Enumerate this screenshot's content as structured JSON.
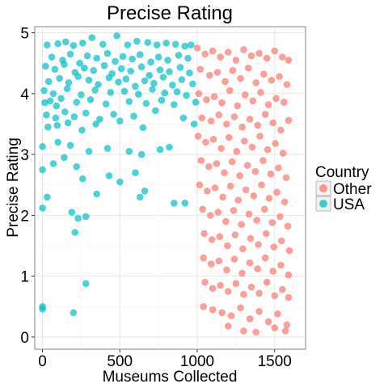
{
  "chart_data": {
    "type": "scatter",
    "title": "Precise Rating",
    "xlabel": "Museums Collected",
    "ylabel": "Precise Rating",
    "xlim": [
      -50,
      1700
    ],
    "ylim": [
      -0.2,
      5.1
    ],
    "x_ticks": [
      0,
      500,
      1000,
      1500
    ],
    "y_ticks": [
      0,
      1,
      2,
      3,
      4,
      5
    ],
    "grid": true,
    "legend": {
      "title": "Country",
      "position": "right",
      "entries": [
        {
          "label": "Other",
          "color": "#F8766D"
        },
        {
          "label": "USA",
          "color": "#00BFC4"
        }
      ]
    },
    "series": [
      {
        "name": "USA",
        "color": "#00BFC4",
        "points": [
          [
            320,
            4.92
          ],
          [
            480,
            4.95
          ],
          [
            30,
            4.8
          ],
          [
            100,
            4.82
          ],
          [
            150,
            4.85
          ],
          [
            200,
            4.79
          ],
          [
            260,
            4.83
          ],
          [
            390,
            4.81
          ],
          [
            550,
            4.8
          ],
          [
            610,
            4.86
          ],
          [
            680,
            4.84
          ],
          [
            740,
            4.8
          ],
          [
            800,
            4.83
          ],
          [
            860,
            4.81
          ],
          [
            920,
            4.78
          ],
          [
            960,
            4.8
          ],
          [
            60,
            4.6
          ],
          [
            130,
            4.55
          ],
          [
            180,
            4.65
          ],
          [
            240,
            4.5
          ],
          [
            290,
            4.62
          ],
          [
            350,
            4.58
          ],
          [
            420,
            4.66
          ],
          [
            470,
            4.53
          ],
          [
            520,
            4.61
          ],
          [
            580,
            4.57
          ],
          [
            630,
            4.64
          ],
          [
            700,
            4.52
          ],
          [
            750,
            4.6
          ],
          [
            810,
            4.55
          ],
          [
            880,
            4.63
          ],
          [
            940,
            4.58
          ],
          [
            20,
            4.45
          ],
          [
            80,
            4.4
          ],
          [
            140,
            4.48
          ],
          [
            210,
            4.35
          ],
          [
            270,
            4.42
          ],
          [
            330,
            4.38
          ],
          [
            400,
            4.46
          ],
          [
            450,
            4.33
          ],
          [
            510,
            4.41
          ],
          [
            570,
            4.37
          ],
          [
            640,
            4.44
          ],
          [
            690,
            4.3
          ],
          [
            760,
            4.39
          ],
          [
            820,
            4.36
          ],
          [
            890,
            4.43
          ],
          [
            950,
            4.34
          ],
          [
            40,
            4.2
          ],
          [
            110,
            4.25
          ],
          [
            170,
            4.18
          ],
          [
            230,
            4.28
          ],
          [
            300,
            4.22
          ],
          [
            360,
            4.15
          ],
          [
            430,
            4.26
          ],
          [
            490,
            4.19
          ],
          [
            540,
            4.24
          ],
          [
            600,
            4.12
          ],
          [
            660,
            4.21
          ],
          [
            720,
            4.17
          ],
          [
            780,
            4.27
          ],
          [
            840,
            4.14
          ],
          [
            900,
            4.23
          ],
          [
            970,
            4.16
          ],
          [
            10,
            4.05
          ],
          [
            70,
            4.0
          ],
          [
            160,
            4.08
          ],
          [
            250,
            3.98
          ],
          [
            340,
            4.06
          ],
          [
            440,
            4.02
          ],
          [
            530,
            4.04
          ],
          [
            620,
            3.99
          ],
          [
            710,
            4.07
          ],
          [
            790,
            4.01
          ],
          [
            870,
            4.03
          ],
          [
            930,
            3.97
          ],
          [
            15,
            3.85
          ],
          [
            50,
            3.88
          ],
          [
            90,
            3.8
          ],
          [
            120,
            3.92
          ],
          [
            220,
            3.86
          ],
          [
            310,
            3.9
          ],
          [
            410,
            3.83
          ],
          [
            560,
            3.87
          ],
          [
            670,
            3.84
          ],
          [
            770,
            3.89
          ],
          [
            850,
            3.82
          ],
          [
            990,
            3.86
          ],
          [
            25,
            3.65
          ],
          [
            85,
            3.6
          ],
          [
            145,
            3.7
          ],
          [
            205,
            3.62
          ],
          [
            280,
            3.68
          ],
          [
            370,
            3.58
          ],
          [
            460,
            3.66
          ],
          [
            590,
            3.63
          ],
          [
            730,
            3.72
          ],
          [
            910,
            3.6
          ],
          [
            35,
            3.45
          ],
          [
            95,
            3.48
          ],
          [
            165,
            3.52
          ],
          [
            255,
            3.4
          ],
          [
            345,
            3.5
          ],
          [
            500,
            3.55
          ],
          [
            650,
            3.44
          ],
          [
            980,
            3.5
          ],
          [
            0,
            3.13
          ],
          [
            100,
            3.2
          ],
          [
            180,
            3.15
          ],
          [
            300,
            3.05
          ],
          [
            420,
            3.1
          ],
          [
            560,
            3.05
          ],
          [
            640,
            3.0
          ],
          [
            760,
            3.08
          ],
          [
            820,
            3.12
          ],
          [
            0,
            2.75
          ],
          [
            30,
            2.3
          ],
          [
            70,
            2.85
          ],
          [
            140,
            2.95
          ],
          [
            220,
            2.8
          ],
          [
            260,
            2.6
          ],
          [
            350,
            2.35
          ],
          [
            430,
            2.65
          ],
          [
            500,
            2.55
          ],
          [
            600,
            2.7
          ],
          [
            660,
            2.4
          ],
          [
            630,
            2.3
          ],
          [
            850,
            2.2
          ],
          [
            920,
            2.2
          ],
          [
            0,
            2.12
          ],
          [
            190,
            2.05
          ],
          [
            230,
            1.95
          ],
          [
            280,
            1.98
          ],
          [
            210,
            1.72
          ],
          [
            280,
            0.88
          ],
          [
            200,
            0.4
          ],
          [
            0,
            0.5
          ],
          [
            0,
            0.46
          ]
        ]
      },
      {
        "name": "Other",
        "color": "#F8766D",
        "points": [
          [
            1000,
            4.75
          ],
          [
            1050,
            4.65
          ],
          [
            1100,
            4.7
          ],
          [
            1150,
            4.6
          ],
          [
            1200,
            4.68
          ],
          [
            1250,
            4.55
          ],
          [
            1300,
            4.72
          ],
          [
            1350,
            4.62
          ],
          [
            1400,
            4.66
          ],
          [
            1450,
            4.58
          ],
          [
            1500,
            4.7
          ],
          [
            1550,
            4.6
          ],
          [
            1590,
            4.55
          ],
          [
            1020,
            4.4
          ],
          [
            1080,
            4.3
          ],
          [
            1130,
            4.35
          ],
          [
            1180,
            4.2
          ],
          [
            1230,
            4.38
          ],
          [
            1280,
            4.25
          ],
          [
            1330,
            4.42
          ],
          [
            1380,
            4.18
          ],
          [
            1430,
            4.32
          ],
          [
            1480,
            4.22
          ],
          [
            1530,
            4.28
          ],
          [
            1580,
            4.15
          ],
          [
            1010,
            4.0
          ],
          [
            1060,
            3.9
          ],
          [
            1110,
            3.95
          ],
          [
            1160,
            3.85
          ],
          [
            1210,
            4.05
          ],
          [
            1260,
            3.8
          ],
          [
            1310,
            3.98
          ],
          [
            1360,
            3.88
          ],
          [
            1410,
            4.02
          ],
          [
            1460,
            3.82
          ],
          [
            1510,
            3.92
          ],
          [
            1560,
            3.86
          ],
          [
            1030,
            3.6
          ],
          [
            1090,
            3.55
          ],
          [
            1140,
            3.65
          ],
          [
            1190,
            3.5
          ],
          [
            1240,
            3.62
          ],
          [
            1290,
            3.45
          ],
          [
            1340,
            3.58
          ],
          [
            1390,
            3.48
          ],
          [
            1440,
            3.66
          ],
          [
            1490,
            3.52
          ],
          [
            1540,
            3.4
          ],
          [
            1590,
            3.56
          ],
          [
            1005,
            3.3
          ],
          [
            1055,
            3.2
          ],
          [
            1105,
            3.25
          ],
          [
            1155,
            3.1
          ],
          [
            1205,
            3.28
          ],
          [
            1255,
            3.05
          ],
          [
            1305,
            3.22
          ],
          [
            1355,
            3.12
          ],
          [
            1405,
            3.3
          ],
          [
            1455,
            3.08
          ],
          [
            1505,
            3.18
          ],
          [
            1555,
            3.02
          ],
          [
            1025,
            2.9
          ],
          [
            1075,
            2.8
          ],
          [
            1125,
            2.85
          ],
          [
            1175,
            2.7
          ],
          [
            1225,
            2.88
          ],
          [
            1275,
            2.65
          ],
          [
            1325,
            2.82
          ],
          [
            1375,
            2.72
          ],
          [
            1425,
            2.9
          ],
          [
            1475,
            2.68
          ],
          [
            1525,
            2.78
          ],
          [
            1575,
            2.62
          ],
          [
            1015,
            2.5
          ],
          [
            1065,
            2.4
          ],
          [
            1115,
            2.45
          ],
          [
            1165,
            2.3
          ],
          [
            1215,
            2.48
          ],
          [
            1265,
            2.25
          ],
          [
            1315,
            2.42
          ],
          [
            1365,
            2.32
          ],
          [
            1415,
            2.5
          ],
          [
            1465,
            2.28
          ],
          [
            1515,
            2.38
          ],
          [
            1565,
            2.22
          ],
          [
            1035,
            2.1
          ],
          [
            1085,
            2.0
          ],
          [
            1135,
            2.05
          ],
          [
            1185,
            1.9
          ],
          [
            1235,
            2.08
          ],
          [
            1285,
            1.85
          ],
          [
            1335,
            2.02
          ],
          [
            1385,
            1.92
          ],
          [
            1435,
            2.1
          ],
          [
            1485,
            1.88
          ],
          [
            1535,
            1.98
          ],
          [
            1585,
            1.82
          ],
          [
            1045,
            1.7
          ],
          [
            1095,
            1.6
          ],
          [
            1145,
            1.65
          ],
          [
            1195,
            1.5
          ],
          [
            1245,
            1.68
          ],
          [
            1295,
            1.45
          ],
          [
            1345,
            1.62
          ],
          [
            1395,
            1.52
          ],
          [
            1445,
            1.7
          ],
          [
            1495,
            1.48
          ],
          [
            1545,
            1.58
          ],
          [
            1595,
            1.42
          ],
          [
            1040,
            1.3
          ],
          [
            1090,
            1.2
          ],
          [
            1140,
            1.25
          ],
          [
            1190,
            1.1
          ],
          [
            1240,
            1.28
          ],
          [
            1290,
            1.05
          ],
          [
            1340,
            1.22
          ],
          [
            1390,
            1.12
          ],
          [
            1440,
            1.3
          ],
          [
            1490,
            1.08
          ],
          [
            1540,
            1.18
          ],
          [
            1590,
            1.02
          ],
          [
            1050,
            0.9
          ],
          [
            1100,
            0.8
          ],
          [
            1150,
            0.85
          ],
          [
            1200,
            0.75
          ],
          [
            1250,
            0.88
          ],
          [
            1300,
            0.7
          ],
          [
            1350,
            0.82
          ],
          [
            1400,
            0.72
          ],
          [
            1450,
            0.9
          ],
          [
            1500,
            0.68
          ],
          [
            1550,
            0.78
          ],
          [
            1590,
            0.65
          ],
          [
            1040,
            0.5
          ],
          [
            1100,
            0.45
          ],
          [
            1160,
            0.4
          ],
          [
            1220,
            0.35
          ],
          [
            1280,
            0.48
          ],
          [
            1340,
            0.3
          ],
          [
            1400,
            0.42
          ],
          [
            1460,
            0.25
          ],
          [
            1520,
            0.38
          ],
          [
            1580,
            0.2
          ],
          [
            1200,
            0.18
          ],
          [
            1300,
            0.1
          ],
          [
            1380,
            0.08
          ],
          [
            1500,
            0.15
          ],
          [
            1570,
            0.1
          ]
        ]
      }
    ]
  }
}
